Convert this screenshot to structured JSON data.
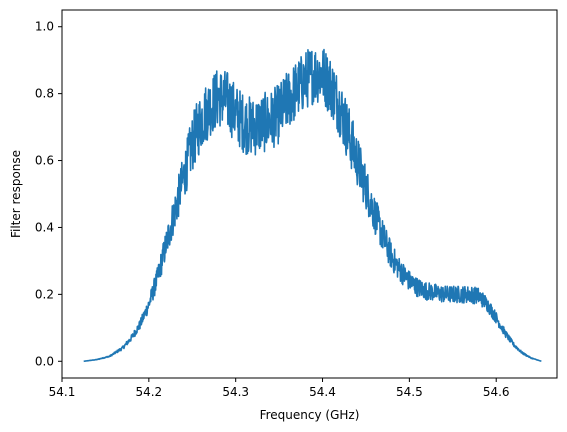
{
  "chart_data": {
    "type": "line",
    "title": "",
    "xlabel": "Frequency (GHz)",
    "ylabel": "Filter response",
    "xlim": [
      54.1,
      54.67
    ],
    "ylim": [
      -0.05,
      1.05
    ],
    "xticks": [
      54.1,
      54.2,
      54.3,
      54.4,
      54.5,
      54.6
    ],
    "xtick_labels": [
      "54.1",
      "54.2",
      "54.3",
      "54.4",
      "54.5",
      "54.6"
    ],
    "yticks": [
      0.0,
      0.2,
      0.4,
      0.6,
      0.8,
      1.0
    ],
    "ytick_labels": [
      "0.0",
      "0.2",
      "0.4",
      "0.6",
      "0.8",
      "1.0"
    ],
    "grid": false,
    "legend": "none",
    "line_color": "#1f77b4",
    "series": [
      {
        "x": [
          54.125,
          54.14,
          54.155,
          54.17,
          54.18,
          54.19,
          54.2,
          54.21,
          54.22,
          54.23,
          54.24,
          54.25,
          54.26,
          54.27,
          54.28,
          54.29,
          54.3,
          54.31,
          54.32,
          54.33,
          54.34,
          54.35,
          54.36,
          54.37,
          54.38,
          54.39,
          54.4,
          54.41,
          54.42,
          54.43,
          54.44,
          54.45,
          54.46,
          54.47,
          54.48,
          54.49,
          54.5,
          54.51,
          54.52,
          54.53,
          54.54,
          54.55,
          54.56,
          54.57,
          54.58,
          54.59,
          54.6,
          54.61,
          54.62,
          54.63,
          54.64,
          54.652
        ],
        "values": [
          0.0,
          0.005,
          0.015,
          0.04,
          0.07,
          0.11,
          0.17,
          0.25,
          0.35,
          0.45,
          0.55,
          0.65,
          0.72,
          0.76,
          0.79,
          0.78,
          0.74,
          0.71,
          0.7,
          0.71,
          0.72,
          0.74,
          0.78,
          0.81,
          0.84,
          0.86,
          0.86,
          0.82,
          0.76,
          0.68,
          0.6,
          0.52,
          0.44,
          0.37,
          0.31,
          0.27,
          0.24,
          0.22,
          0.21,
          0.205,
          0.2,
          0.2,
          0.2,
          0.2,
          0.195,
          0.17,
          0.13,
          0.085,
          0.05,
          0.025,
          0.01,
          0.0
        ]
      }
    ]
  }
}
